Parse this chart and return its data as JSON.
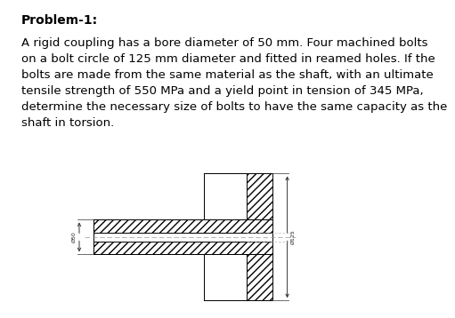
{
  "title_text": "Problem-1:",
  "body_text": "A rigid coupling has a bore diameter of 50 mm. Four machined bolts\non a bolt circle of 125 mm diameter and fitted in reamed holes. If the\nbolts are made from the same material as the shaft, with an ultimate\ntensile strength of 550 MPa and a yield point in tension of 345 MPa,\ndetermine the necessary size of bolts to have the same capacity as the\nshaft in torsion.",
  "bg_color": "#ffffff",
  "ec": "#000000",
  "dim_label_right": "Ø125",
  "dim_label_left": "Ø50",
  "title_fontsize": 10,
  "body_fontsize": 9.5
}
